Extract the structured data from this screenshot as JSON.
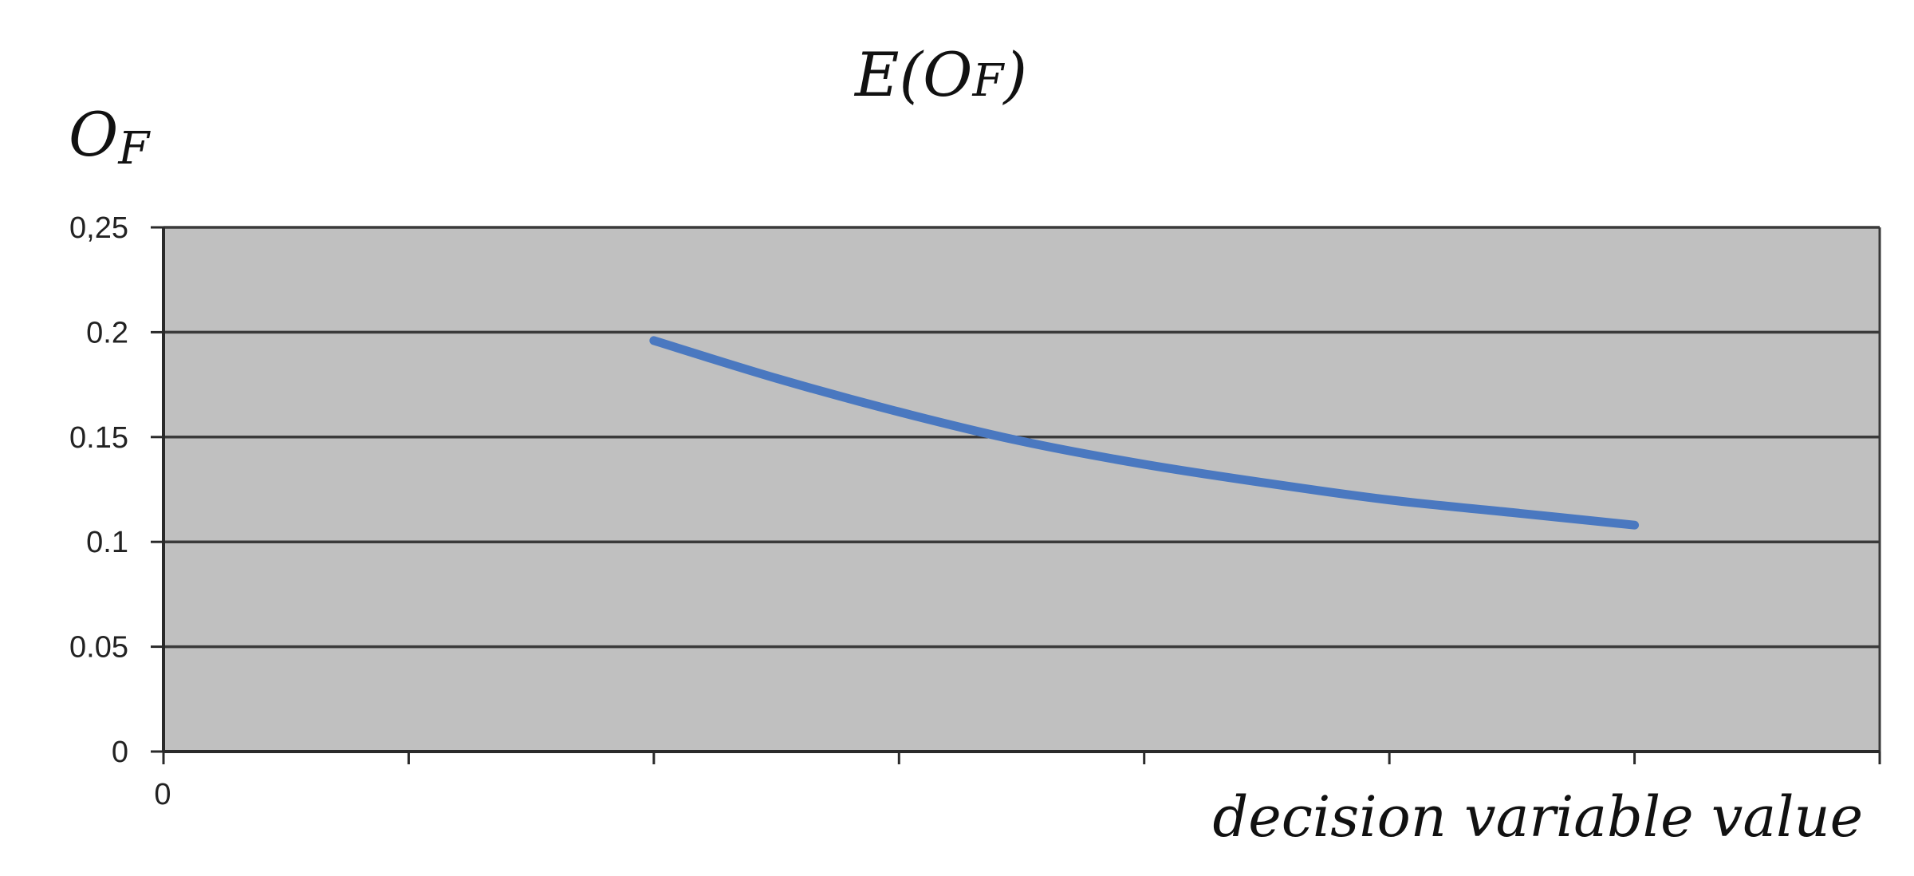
{
  "chart_data": {
    "type": "line",
    "title": "E(O",
    "title_subscript": "F",
    "title_close": ")",
    "ylabel": "O",
    "ylabel_subscript": "F",
    "xlabel": "decision variable value",
    "x_origin_label": "0",
    "ylim": [
      0,
      0.25
    ],
    "xlim": [
      0,
      7
    ],
    "y_ticks": [
      "0",
      "0.05",
      "0.1",
      "0.15",
      "0.2",
      "0,25"
    ],
    "y_tick_values": [
      0,
      0.05,
      0.1,
      0.15,
      0.2,
      0.25
    ],
    "x_tick_positions": [
      0,
      1,
      2,
      3,
      4,
      5,
      6,
      7
    ],
    "grid": true,
    "plot_background": "#c0c0c0",
    "series": [
      {
        "color": "#4a78c0",
        "x": [
          2,
          2.5,
          3,
          3.5,
          4,
          4.5,
          5,
          5.5,
          6
        ],
        "y": [
          0.196,
          0.178,
          0.162,
          0.148,
          0.137,
          0.128,
          0.12,
          0.114,
          0.108
        ]
      }
    ]
  }
}
